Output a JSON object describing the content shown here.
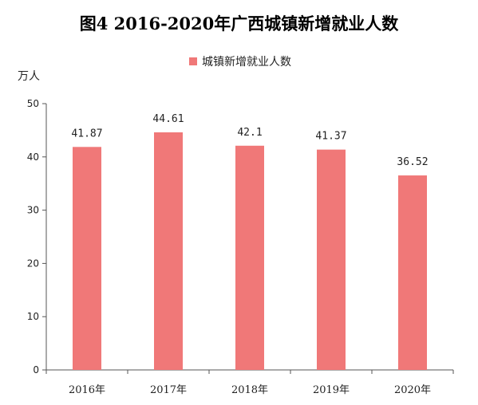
{
  "chart_data": {
    "type": "bar",
    "title": "图4 2016-2020年广西城镇新增就业人数",
    "ylabel": "万人",
    "xlabel": "",
    "categories": [
      "2016年",
      "2017年",
      "2018年",
      "2019年",
      "2020年"
    ],
    "series": [
      {
        "name": "城镇新增就业人数",
        "values": [
          41.87,
          44.61,
          42.1,
          41.37,
          36.52
        ],
        "labels": [
          "41.87",
          "44.61",
          "42.1",
          "41.37",
          "36.52"
        ],
        "color": "#f07878"
      }
    ],
    "ylim": [
      0,
      50
    ],
    "yticks": [
      "0",
      "10",
      "20",
      "30",
      "40",
      "50"
    ],
    "grid": false,
    "legend_position": "top-center"
  }
}
